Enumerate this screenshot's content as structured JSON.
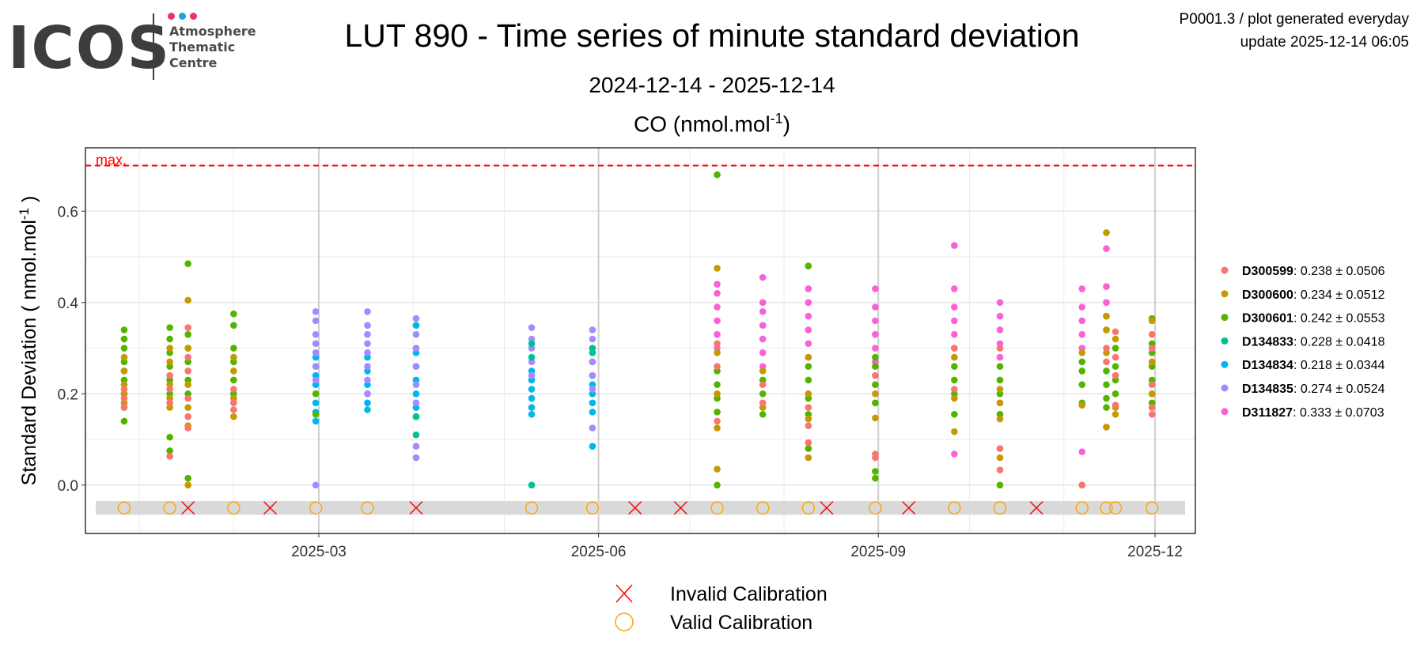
{
  "header": {
    "title": "LUT 890 - Time series of minute standard deviation",
    "subtitle": "2024-12-14 - 2025-12-14",
    "variable_title": "CO (nmol.mol",
    "variable_title_sup": "-1",
    "variable_title_end": ")",
    "meta_line1": "P0001.3 / plot generated everyday",
    "meta_line2": "update  2025-12-14 06:05"
  },
  "logo": {
    "text": "ICOS",
    "sub": [
      "Atmosphere",
      "Thematic",
      "Centre"
    ],
    "dot_colors": [
      "#e8336b",
      "#1ea2e4",
      "#e8336b"
    ]
  },
  "chart_data": {
    "type": "scatter",
    "title": "LUT 890 - Time series of minute standard deviation",
    "ylabel": "Standard Deviation ( nmol.mol",
    "ylabel_sup": "-1",
    "ylabel_end": " )",
    "xlim": [
      "2024-12-14",
      "2025-12-14"
    ],
    "ylim": [
      -0.106,
      0.739
    ],
    "yticks": [
      0.0,
      0.2,
      0.4,
      0.6
    ],
    "ytick_labels": [
      "0.0",
      "0.2",
      "0.4",
      "0.6"
    ],
    "xticks": [
      "2025-03-01",
      "2025-06-01",
      "2025-09-01",
      "2025-12-01"
    ],
    "xtick_labels": [
      "2025-03",
      "2025-06",
      "2025-09",
      "2025-12"
    ],
    "grid": true,
    "max_line": {
      "value": 0.7,
      "label": "max.",
      "color": "#ff0000"
    },
    "legend_position": "right",
    "series": [
      {
        "name": "D300599",
        "stats": ": 0.238 ± 0.0506",
        "color": "#f8766d"
      },
      {
        "name": "D300600",
        "stats": ": 0.234 ± 0.0512",
        "color": "#c49a00"
      },
      {
        "name": "D300601",
        "stats": ": 0.242 ± 0.0553",
        "color": "#53b400"
      },
      {
        "name": "D134833",
        "stats": ": 0.228 ± 0.0418",
        "color": "#00c094"
      },
      {
        "name": "D134834",
        "stats": ": 0.218 ± 0.0344",
        "color": "#00b6eb"
      },
      {
        "name": "D134835",
        "stats": ": 0.274 ± 0.0524",
        "color": "#a58aff"
      },
      {
        "name": "D311827",
        "stats": ": 0.333 ± 0.0703",
        "color": "#fb61d7"
      }
    ],
    "clusters": [
      {
        "date": "2024-12-27",
        "points": {
          "D300601": [
            0.14,
            0.17,
            0.2,
            0.23,
            0.25,
            0.27,
            0.3,
            0.32,
            0.34
          ],
          "D300600": [
            0.18,
            0.2,
            0.22,
            0.25,
            0.28
          ],
          "D300599": [
            0.17,
            0.19,
            0.21
          ]
        }
      },
      {
        "date": "2025-01-11",
        "points": {
          "D300601": [
            0.075,
            0.105,
            0.2,
            0.23,
            0.26,
            0.29,
            0.32,
            0.345
          ],
          "D300600": [
            0.17,
            0.19,
            0.22,
            0.27,
            0.3
          ],
          "D300599": [
            0.063,
            0.18,
            0.21,
            0.24
          ]
        }
      },
      {
        "date": "2025-01-17",
        "points": {
          "D300601": [
            0.015,
            0.2,
            0.23,
            0.27,
            0.3,
            0.33,
            0.485
          ],
          "D300600": [
            0,
            0.13,
            0.17,
            0.22,
            0.3,
            0.405
          ],
          "D300599": [
            0.125,
            0.15,
            0.19,
            0.25,
            0.28,
            0.345
          ]
        }
      },
      {
        "date": "2025-02-01",
        "points": {
          "D300601": [
            0.2,
            0.23,
            0.27,
            0.3,
            0.35,
            0.375
          ],
          "D300600": [
            0.15,
            0.19,
            0.25,
            0.28
          ],
          "D300599": [
            0.165,
            0.18,
            0.21
          ]
        }
      },
      {
        "date": "2025-02-28",
        "points": {
          "D134834": [
            0.14,
            0.16,
            0.18,
            0.2,
            0.22,
            0.24,
            0.26,
            0.28
          ],
          "D134835": [
            0,
            0.23,
            0.26,
            0.29,
            0.31,
            0.33,
            0.36,
            0.38
          ],
          "D300601": [
            0.155,
            0.2
          ]
        }
      },
      {
        "date": "2025-03-17",
        "points": {
          "D134834": [
            0.165,
            0.18,
            0.2,
            0.22,
            0.25,
            0.28
          ],
          "D134835": [
            0.2,
            0.23,
            0.26,
            0.29,
            0.31,
            0.33,
            0.35,
            0.38
          ]
        }
      },
      {
        "date": "2025-04-02",
        "points": {
          "D134834": [
            0.15,
            0.17,
            0.2,
            0.23,
            0.26,
            0.29,
            0.35
          ],
          "D134835": [
            0.06,
            0.085,
            0.18,
            0.22,
            0.26,
            0.3,
            0.33,
            0.365
          ],
          "D134833": [
            0.11,
            0.15
          ]
        }
      },
      {
        "date": "2025-05-10",
        "points": {
          "D134834": [
            0.155,
            0.17,
            0.19,
            0.21,
            0.23,
            0.25
          ],
          "D134835": [
            0.24,
            0.27,
            0.3,
            0.32,
            0.345
          ],
          "D134833": [
            0,
            0.28,
            0.31
          ]
        }
      },
      {
        "date": "2025-05-30",
        "points": {
          "D134834": [
            0.085,
            0.16,
            0.18,
            0.2,
            0.22,
            0.24,
            0.27
          ],
          "D134835": [
            0.125,
            0.21,
            0.24,
            0.27,
            0.3,
            0.32,
            0.34
          ],
          "D134833": [
            0.29,
            0.3
          ]
        }
      },
      {
        "date": "2025-07-10",
        "points": {
          "D311827": [
            0.3,
            0.33,
            0.36,
            0.39,
            0.42,
            0.44
          ],
          "D300601": [
            0,
            0.16,
            0.19,
            0.22,
            0.25,
            0.68
          ],
          "D300600": [
            0.035,
            0.125,
            0.2,
            0.29,
            0.475
          ],
          "D300599": [
            0.14,
            0.26,
            0.31
          ]
        }
      },
      {
        "date": "2025-07-25",
        "points": {
          "D311827": [
            0.26,
            0.29,
            0.32,
            0.35,
            0.38,
            0.4,
            0.455
          ],
          "D300601": [
            0.155,
            0.2,
            0.23
          ],
          "D300600": [
            0.17,
            0.25
          ],
          "D300599": [
            0.18,
            0.22
          ]
        }
      },
      {
        "date": "2025-08-09",
        "points": {
          "D311827": [
            0.28,
            0.31,
            0.34,
            0.37,
            0.4,
            0.43
          ],
          "D300601": [
            0.08,
            0.155,
            0.19,
            0.23,
            0.26,
            0.48
          ],
          "D300600": [
            0.06,
            0.145,
            0.2,
            0.28
          ],
          "D300599": [
            0.093,
            0.13,
            0.17
          ]
        }
      },
      {
        "date": "2025-08-31",
        "points": {
          "D311827": [
            0.27,
            0.3,
            0.33,
            0.36,
            0.39,
            0.43
          ],
          "D300601": [
            0.015,
            0.03,
            0.18,
            0.22,
            0.26,
            0.28
          ],
          "D300600": [
            0.147,
            0.2
          ],
          "D300599": [
            0.06,
            0.068,
            0.24
          ]
        }
      },
      {
        "date": "2025-09-26",
        "points": {
          "D311827": [
            0.068,
            0.3,
            0.33,
            0.36,
            0.39,
            0.43,
            0.525
          ],
          "D300601": [
            0.155,
            0.2,
            0.23,
            0.26
          ],
          "D300600": [
            0.117,
            0.19,
            0.28
          ],
          "D300599": [
            0.21,
            0.3
          ]
        }
      },
      {
        "date": "2025-10-11",
        "points": {
          "D311827": [
            0.28,
            0.31,
            0.34,
            0.37,
            0.4
          ],
          "D300601": [
            0,
            0.155,
            0.2,
            0.23,
            0.26
          ],
          "D300600": [
            0.06,
            0.145,
            0.18,
            0.21
          ],
          "D300599": [
            0.033,
            0.08,
            0.3
          ]
        }
      },
      {
        "date": "2025-11-07",
        "points": {
          "D311827": [
            0.073,
            0.3,
            0.33,
            0.36,
            0.39,
            0.43
          ],
          "D300601": [
            0.18,
            0.22,
            0.25,
            0.27
          ],
          "D300600": [
            0,
            0.175,
            0.29
          ],
          "D300599": [
            0
          ]
        }
      },
      {
        "date": "2025-11-15",
        "points": {
          "D311827": [
            0.34,
            0.37,
            0.4,
            0.435,
            0.518
          ],
          "D300601": [
            0.17,
            0.19,
            0.22,
            0.25
          ],
          "D300600": [
            0.127,
            0.29,
            0.34,
            0.37,
            0.553
          ],
          "D300599": [
            0.27,
            0.3
          ]
        }
      },
      {
        "date": "2025-11-18",
        "points": {
          "D300601": [
            0.2,
            0.23,
            0.26,
            0.3
          ],
          "D300600": [
            0.155,
            0.17,
            0.32
          ],
          "D300599": [
            0.175,
            0.24,
            0.28,
            0.336
          ]
        }
      },
      {
        "date": "2025-11-30",
        "points": {
          "D300601": [
            0.18,
            0.2,
            0.23,
            0.26,
            0.29,
            0.31,
            0.365
          ],
          "D300600": [
            0.2,
            0.27,
            0.36
          ],
          "D300599": [
            0.155,
            0.17,
            0.22,
            0.3,
            0.33
          ]
        }
      }
    ],
    "calibration_band": [
      -0.065,
      -0.035
    ],
    "calibration_marker_y": -0.05,
    "valid_calibrations": [
      "2024-12-27",
      "2025-01-11",
      "2025-02-01",
      "2025-02-28",
      "2025-03-17",
      "2025-05-10",
      "2025-05-30",
      "2025-07-10",
      "2025-07-25",
      "2025-08-09",
      "2025-08-31",
      "2025-09-26",
      "2025-10-11",
      "2025-11-07",
      "2025-11-15",
      "2025-11-18",
      "2025-11-30"
    ],
    "invalid_calibrations": [
      "2025-01-17",
      "2025-02-13",
      "2025-04-02",
      "2025-06-13",
      "2025-06-28",
      "2025-08-15",
      "2025-09-11",
      "2025-10-23"
    ],
    "bottom_legend": {
      "invalid_label": "Invalid Calibration",
      "valid_label": "Valid Calibration",
      "invalid_color": "#ff0000",
      "valid_color": "#ffa500"
    }
  }
}
